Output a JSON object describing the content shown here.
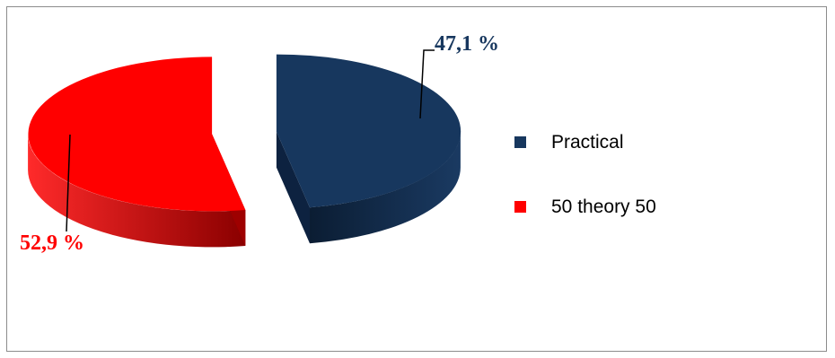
{
  "chart_data": {
    "type": "pie",
    "style": "3d-exploded",
    "categories": [
      "Practical",
      "50 theory 50"
    ],
    "values": [
      47.1,
      52.9
    ],
    "data_labels": [
      "47,1 %",
      "52,9 %"
    ],
    "colors": [
      "#17375e",
      "#ff0000"
    ],
    "dark_colors": [
      "#0d2240",
      "#9e0000"
    ],
    "legend_position": "right"
  }
}
